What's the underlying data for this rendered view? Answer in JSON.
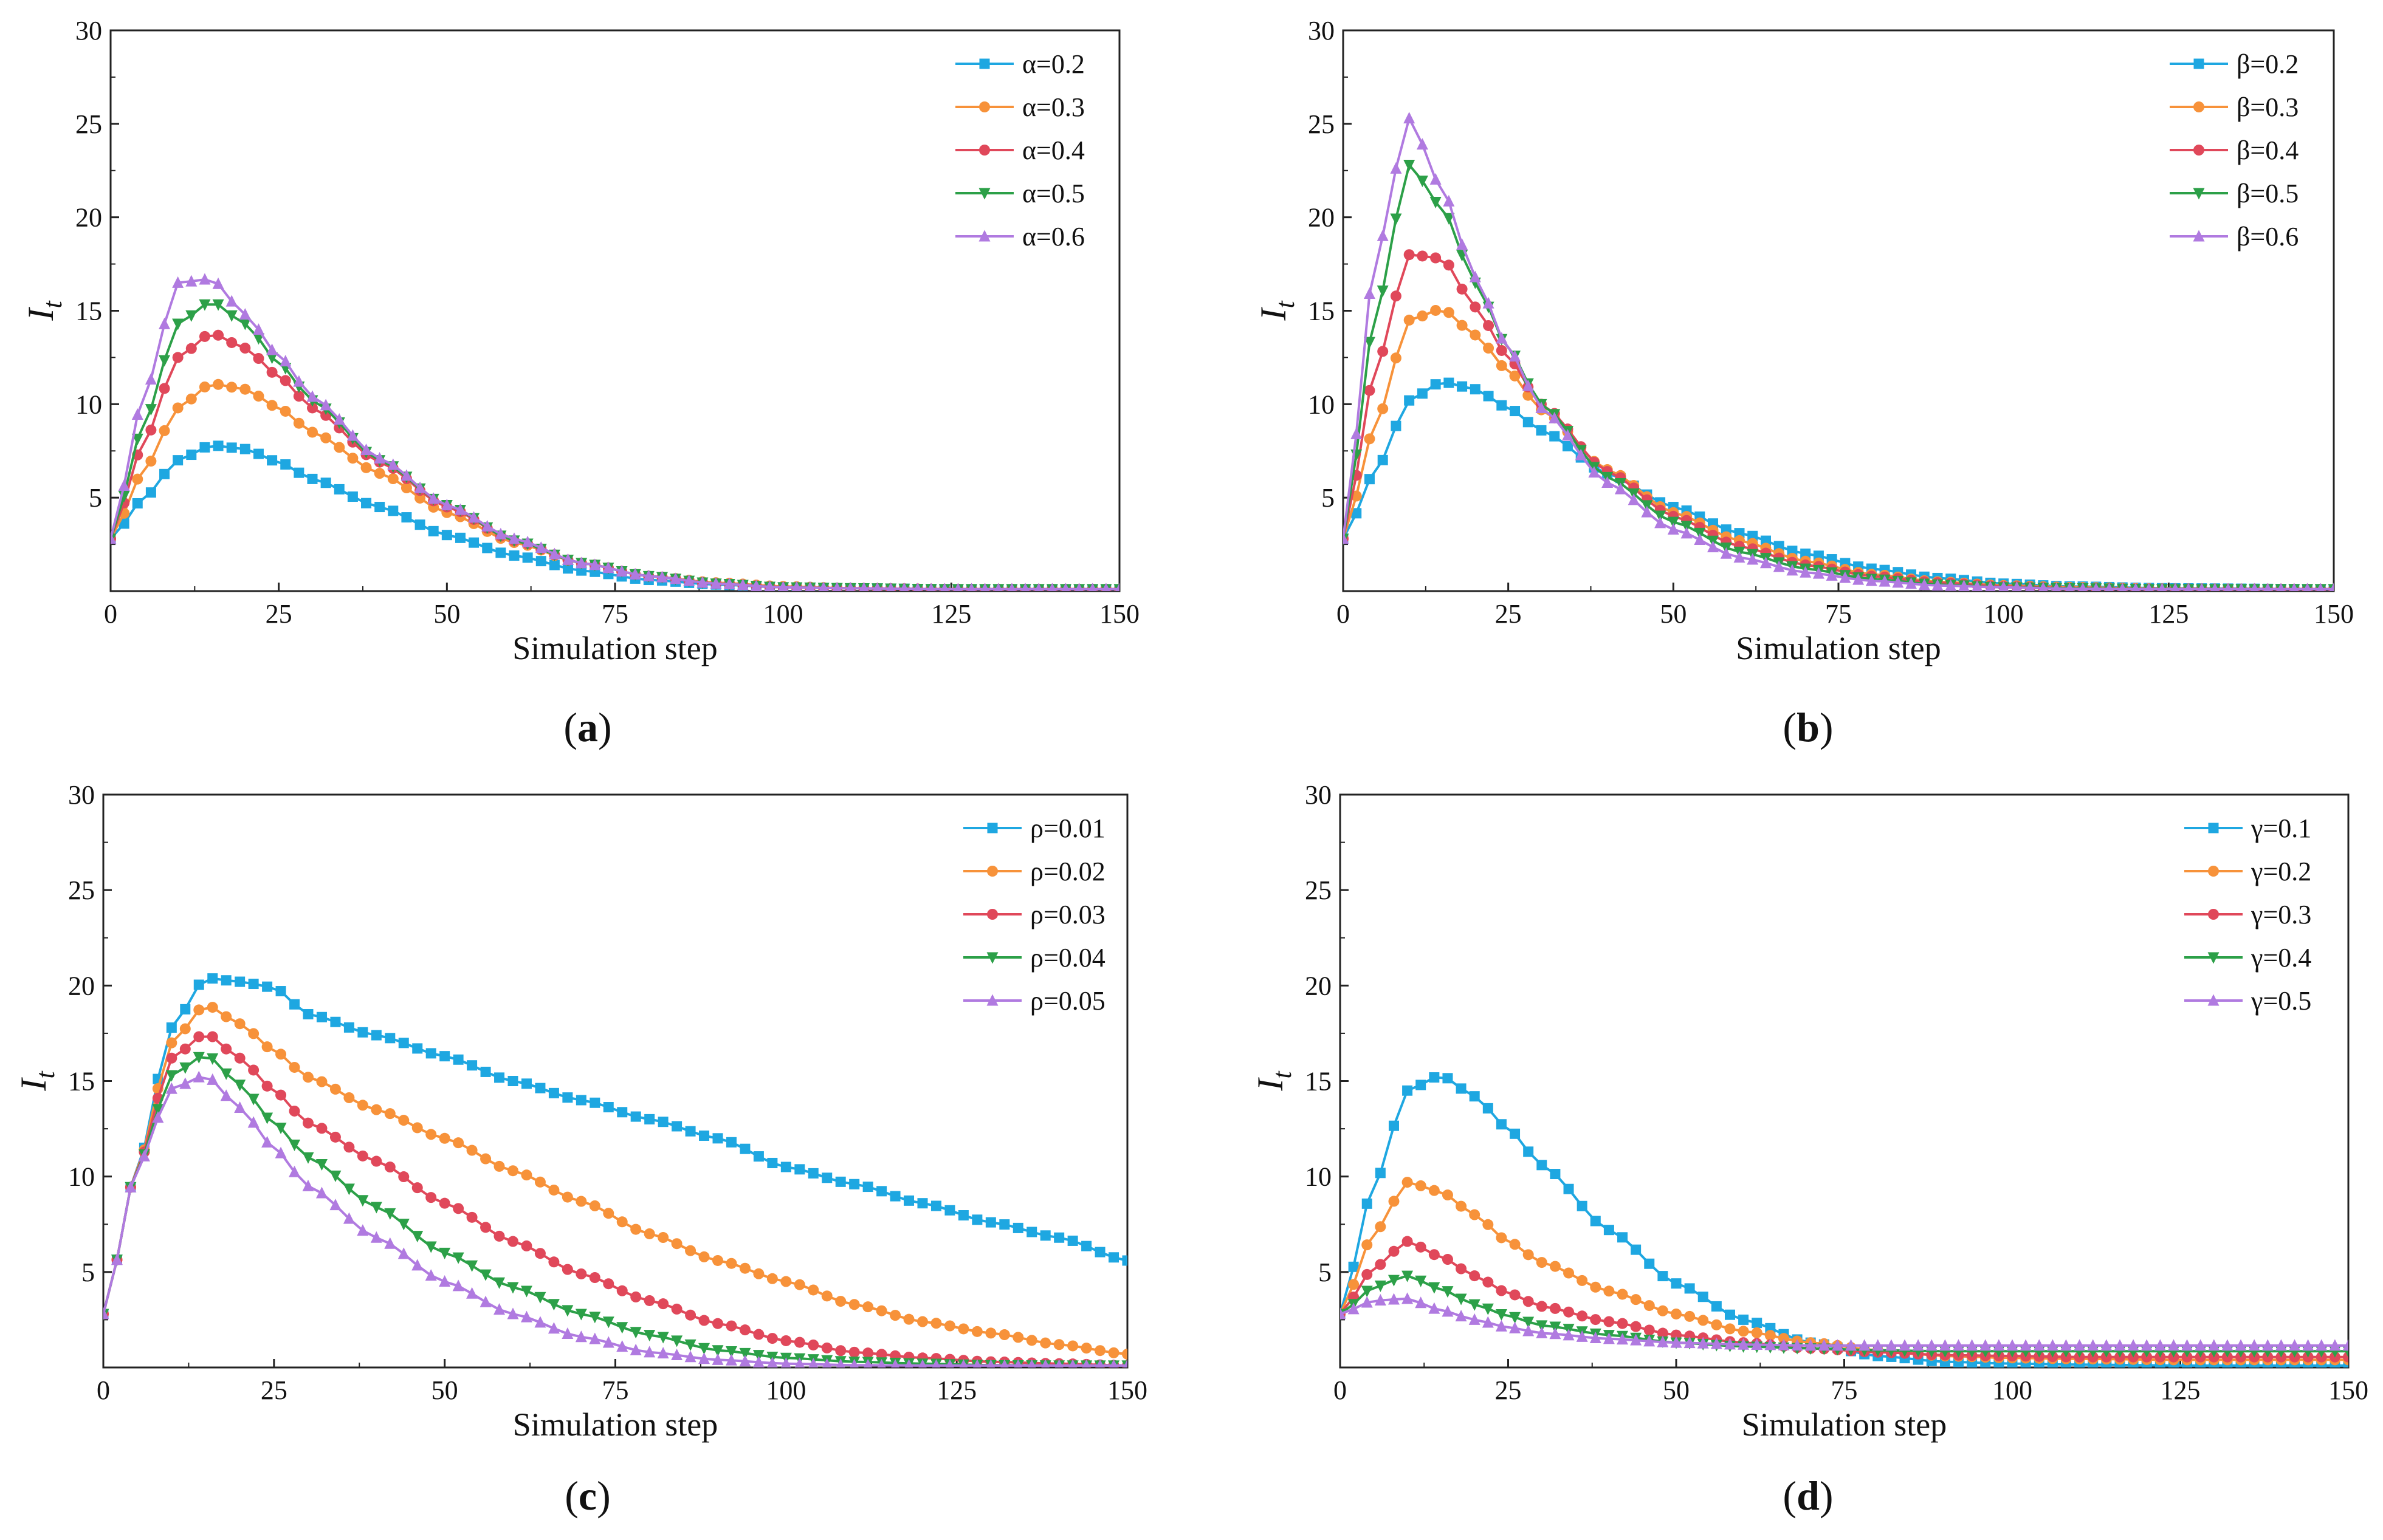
{
  "chart_data": [
    {
      "panel_label": "a",
      "type": "line",
      "xlabel": "Simulation step",
      "ylabel_main": "I",
      "ylabel_sub": "t",
      "xlim": [
        0,
        150
      ],
      "ylim": [
        0,
        30
      ],
      "xticks": [
        "0",
        "25",
        "50",
        "75",
        "100",
        "125",
        "150"
      ],
      "yticks": [
        "5",
        "10",
        "15",
        "20",
        "25",
        "30"
      ],
      "series": [
        {
          "name": "α=0.2",
          "color": "#1ea7e1",
          "marker": "square",
          "x": [
            0,
            5,
            10,
            15,
            20,
            25,
            30,
            40,
            50,
            60,
            70,
            80,
            90,
            100,
            110,
            125,
            150
          ],
          "values": [
            2.8,
            5.0,
            7.0,
            7.8,
            7.6,
            6.9,
            6.0,
            4.5,
            3.0,
            1.9,
            1.1,
            0.6,
            0.35,
            0.2,
            0.15,
            0.1,
            0.1
          ]
        },
        {
          "name": "α=0.3",
          "color": "#f7923a",
          "marker": "circle",
          "x": [
            0,
            5,
            10,
            15,
            20,
            25,
            30,
            40,
            50,
            60,
            70,
            80,
            90,
            100,
            110,
            125,
            150
          ],
          "values": [
            2.8,
            6.5,
            9.8,
            11.1,
            10.8,
            9.8,
            8.5,
            6.3,
            4.2,
            2.6,
            1.5,
            0.8,
            0.45,
            0.25,
            0.15,
            0.1,
            0.1
          ]
        },
        {
          "name": "α=0.4",
          "color": "#e0485a",
          "marker": "circle",
          "x": [
            0,
            5,
            10,
            15,
            20,
            25,
            30,
            40,
            50,
            60,
            70,
            80,
            90,
            100,
            110,
            125,
            150
          ],
          "values": [
            2.8,
            8.0,
            12.5,
            13.8,
            13.0,
            11.5,
            9.8,
            6.9,
            4.5,
            2.7,
            1.5,
            0.8,
            0.4,
            0.2,
            0.15,
            0.1,
            0.1
          ]
        },
        {
          "name": "α=0.5",
          "color": "#2ca048",
          "marker": "triangle-down",
          "x": [
            0,
            5,
            10,
            15,
            20,
            25,
            30,
            40,
            50,
            60,
            70,
            80,
            90,
            100,
            110,
            125,
            150
          ],
          "values": [
            2.8,
            9.0,
            14.3,
            15.5,
            14.3,
            12.2,
            10.2,
            7.0,
            4.6,
            2.7,
            1.5,
            0.8,
            0.4,
            0.2,
            0.15,
            0.1,
            0.1
          ]
        },
        {
          "name": "α=0.6",
          "color": "#b07ae0",
          "marker": "triangle-up",
          "x": [
            0,
            5,
            10,
            15,
            20,
            25,
            30,
            40,
            50,
            60,
            70,
            80,
            90,
            100,
            110,
            125,
            150
          ],
          "values": [
            2.8,
            10.5,
            16.5,
            16.7,
            14.8,
            12.6,
            10.4,
            7.1,
            4.6,
            2.8,
            1.5,
            0.8,
            0.4,
            0.2,
            0.15,
            0.1,
            0.1
          ]
        }
      ]
    },
    {
      "panel_label": "b",
      "type": "line",
      "xlabel": "Simulation step",
      "ylabel_main": "I",
      "ylabel_sub": "t",
      "xlim": [
        0,
        150
      ],
      "ylim": [
        0,
        30
      ],
      "xticks": [
        "0",
        "25",
        "50",
        "75",
        "100",
        "125",
        "150"
      ],
      "yticks": [
        "5",
        "10",
        "15",
        "20",
        "25",
        "30"
      ],
      "series": [
        {
          "name": "β=0.2",
          "color": "#1ea7e1",
          "marker": "square",
          "x": [
            0,
            5,
            10,
            15,
            20,
            25,
            30,
            40,
            50,
            60,
            70,
            80,
            90,
            100,
            110,
            125,
            150
          ],
          "values": [
            2.8,
            6.5,
            10.2,
            11.2,
            10.8,
            9.8,
            8.6,
            6.3,
            4.5,
            3.1,
            2.0,
            1.2,
            0.7,
            0.4,
            0.25,
            0.15,
            0.1
          ]
        },
        {
          "name": "β=0.3",
          "color": "#f7923a",
          "marker": "circle",
          "x": [
            0,
            5,
            10,
            15,
            20,
            25,
            30,
            40,
            50,
            60,
            70,
            80,
            90,
            100,
            110,
            125,
            150
          ],
          "values": [
            2.8,
            9.0,
            14.5,
            15.1,
            13.7,
            11.8,
            9.7,
            6.5,
            4.2,
            2.7,
            1.6,
            0.9,
            0.5,
            0.3,
            0.2,
            0.12,
            0.1
          ]
        },
        {
          "name": "β=0.4",
          "color": "#e0485a",
          "marker": "circle",
          "x": [
            0,
            5,
            10,
            15,
            20,
            25,
            30,
            40,
            50,
            60,
            70,
            80,
            90,
            100,
            110,
            125,
            150
          ],
          "values": [
            2.8,
            12.0,
            18.0,
            17.8,
            15.2,
            12.5,
            10.0,
            6.4,
            4.0,
            2.4,
            1.4,
            0.8,
            0.45,
            0.25,
            0.15,
            0.1,
            0.1
          ]
        },
        {
          "name": "β=0.5",
          "color": "#2ca048",
          "marker": "triangle-down",
          "x": [
            0,
            5,
            10,
            15,
            20,
            25,
            30,
            40,
            50,
            60,
            70,
            80,
            90,
            100,
            110,
            125,
            150
          ],
          "values": [
            2.8,
            15.0,
            22.8,
            20.5,
            16.5,
            13.0,
            10.0,
            6.1,
            3.7,
            2.1,
            1.2,
            0.65,
            0.35,
            0.2,
            0.15,
            0.1,
            0.1
          ]
        },
        {
          "name": "β=0.6",
          "color": "#b07ae0",
          "marker": "triangle-up",
          "x": [
            0,
            5,
            10,
            15,
            20,
            25,
            30,
            40,
            50,
            60,
            70,
            80,
            90,
            100,
            110,
            125,
            150
          ],
          "values": [
            2.8,
            18.0,
            25.3,
            21.5,
            16.8,
            13.0,
            9.8,
            5.8,
            3.3,
            1.8,
            1.0,
            0.55,
            0.3,
            0.2,
            0.12,
            0.1,
            0.1
          ]
        }
      ]
    },
    {
      "panel_label": "c",
      "type": "line",
      "xlabel": "Simulation step",
      "ylabel_main": "I",
      "ylabel_sub": "t",
      "xlim": [
        0,
        150
      ],
      "ylim": [
        0,
        30
      ],
      "xticks": [
        "0",
        "25",
        "50",
        "75",
        "100",
        "125",
        "150"
      ],
      "yticks": [
        "5",
        "10",
        "15",
        "20",
        "25",
        "30"
      ],
      "series": [
        {
          "name": "ρ=0.01",
          "color": "#1ea7e1",
          "marker": "square",
          "x": [
            0,
            5,
            10,
            15,
            20,
            25,
            30,
            40,
            50,
            60,
            70,
            80,
            90,
            100,
            110,
            120,
            130,
            140,
            150
          ],
          "values": [
            2.8,
            10.5,
            17.8,
            20.4,
            20.2,
            19.9,
            18.5,
            17.4,
            16.3,
            15.0,
            14.0,
            13.0,
            12.0,
            10.5,
            9.6,
            8.6,
            7.6,
            6.8,
            5.6
          ]
        },
        {
          "name": "ρ=0.02",
          "color": "#f7923a",
          "marker": "circle",
          "x": [
            0,
            5,
            10,
            15,
            20,
            25,
            30,
            40,
            50,
            60,
            70,
            80,
            90,
            100,
            110,
            120,
            130,
            140,
            150
          ],
          "values": [
            2.8,
            10.5,
            17.0,
            19.0,
            18.0,
            16.6,
            15.2,
            13.5,
            12.0,
            10.3,
            8.7,
            7.0,
            5.6,
            4.5,
            3.3,
            2.4,
            1.8,
            1.2,
            0.7
          ]
        },
        {
          "name": "ρ=0.03",
          "color": "#e0485a",
          "marker": "circle",
          "x": [
            0,
            5,
            10,
            15,
            20,
            25,
            30,
            40,
            50,
            60,
            70,
            80,
            90,
            100,
            110,
            120,
            130,
            140,
            150
          ],
          "values": [
            2.8,
            10.5,
            16.2,
            17.5,
            16.2,
            14.5,
            12.8,
            10.8,
            8.6,
            6.6,
            4.9,
            3.5,
            2.3,
            1.4,
            0.8,
            0.5,
            0.3,
            0.2,
            0.1
          ]
        },
        {
          "name": "ρ=0.04",
          "color": "#2ca048",
          "marker": "triangle-down",
          "x": [
            0,
            5,
            10,
            15,
            20,
            25,
            30,
            40,
            50,
            60,
            70,
            80,
            90,
            100,
            110,
            120,
            130,
            140,
            150
          ],
          "values": [
            2.8,
            10.5,
            15.3,
            16.4,
            14.8,
            12.8,
            11.0,
            8.4,
            6.0,
            4.2,
            2.8,
            1.7,
            0.9,
            0.5,
            0.3,
            0.2,
            0.12,
            0.1,
            0.1
          ]
        },
        {
          "name": "ρ=0.05",
          "color": "#b07ae0",
          "marker": "triangle-up",
          "x": [
            0,
            5,
            10,
            15,
            20,
            25,
            30,
            40,
            50,
            60,
            70,
            80,
            90,
            100,
            110,
            120,
            130,
            140,
            150
          ],
          "values": [
            2.8,
            10.5,
            14.6,
            15.3,
            13.6,
            11.5,
            9.5,
            6.8,
            4.5,
            2.8,
            1.6,
            0.8,
            0.4,
            0.2,
            0.12,
            0.1,
            0.1,
            0.1,
            0.1
          ]
        }
      ]
    },
    {
      "panel_label": "d",
      "type": "line",
      "xlabel": "Simulation step",
      "ylabel_main": "I",
      "ylabel_sub": "t",
      "xlim": [
        0,
        150
      ],
      "ylim": [
        0,
        30
      ],
      "xticks": [
        "0",
        "25",
        "50",
        "75",
        "100",
        "125",
        "150"
      ],
      "yticks": [
        "5",
        "10",
        "15",
        "20",
        "25",
        "30"
      ],
      "series": [
        {
          "name": "γ=0.1",
          "color": "#1ea7e1",
          "marker": "square",
          "x": [
            0,
            5,
            10,
            15,
            20,
            25,
            30,
            40,
            50,
            60,
            70,
            80,
            90,
            100,
            110,
            125,
            150
          ],
          "values": [
            2.8,
            9.5,
            14.5,
            15.3,
            14.2,
            12.5,
            10.6,
            7.2,
            4.4,
            2.5,
            1.3,
            0.6,
            0.3,
            0.2,
            0.15,
            0.1,
            0.1
          ]
        },
        {
          "name": "γ=0.2",
          "color": "#f7923a",
          "marker": "circle",
          "x": [
            0,
            5,
            10,
            15,
            20,
            25,
            30,
            40,
            50,
            60,
            70,
            80,
            90,
            100,
            110,
            125,
            150
          ],
          "values": [
            2.8,
            7.0,
            9.7,
            9.2,
            8.0,
            6.6,
            5.5,
            4.0,
            2.8,
            1.9,
            1.3,
            0.9,
            0.6,
            0.5,
            0.45,
            0.4,
            0.4
          ]
        },
        {
          "name": "γ=0.3",
          "color": "#e0485a",
          "marker": "circle",
          "x": [
            0,
            5,
            10,
            15,
            20,
            25,
            30,
            40,
            50,
            60,
            70,
            80,
            90,
            100,
            110,
            125,
            150
          ],
          "values": [
            2.8,
            5.2,
            6.6,
            5.8,
            4.8,
            3.9,
            3.2,
            2.4,
            1.7,
            1.3,
            1.0,
            0.8,
            0.65,
            0.6,
            0.55,
            0.55,
            0.55
          ]
        },
        {
          "name": "γ=0.4",
          "color": "#2ca048",
          "marker": "triangle-down",
          "x": [
            0,
            5,
            10,
            15,
            20,
            25,
            30,
            40,
            50,
            60,
            70,
            80,
            90,
            100,
            110,
            125,
            150
          ],
          "values": [
            2.8,
            4.2,
            4.8,
            4.1,
            3.3,
            2.7,
            2.2,
            1.7,
            1.3,
            1.1,
            1.0,
            0.9,
            0.85,
            0.85,
            0.85,
            0.85,
            0.85
          ]
        },
        {
          "name": "γ=0.5",
          "color": "#b07ae0",
          "marker": "triangle-up",
          "x": [
            0,
            5,
            10,
            15,
            20,
            25,
            30,
            40,
            50,
            60,
            70,
            80,
            90,
            100,
            110,
            125,
            150
          ],
          "values": [
            2.8,
            3.5,
            3.6,
            3.0,
            2.5,
            2.1,
            1.8,
            1.5,
            1.3,
            1.2,
            1.15,
            1.15,
            1.15,
            1.15,
            1.15,
            1.15,
            1.15
          ]
        }
      ]
    }
  ]
}
